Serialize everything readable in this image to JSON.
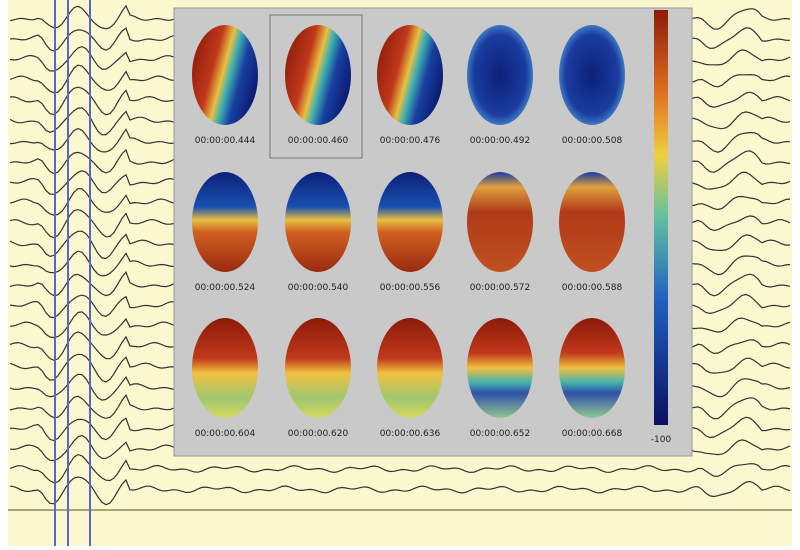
{
  "maps": [
    {
      "time": "00:00:00.444"
    },
    {
      "time": "00:00:00.460"
    },
    {
      "time": "00:00:00.476"
    },
    {
      "time": "00:00:00.492"
    },
    {
      "time": "00:00:00.508"
    },
    {
      "time": "00:00:00.524"
    },
    {
      "time": "00:00:00.540"
    },
    {
      "time": "00:00:00.556"
    },
    {
      "time": "00:00:00.572"
    },
    {
      "time": "00:00:00.588"
    },
    {
      "time": "00:00:00.604"
    },
    {
      "time": "00:00:00.620"
    },
    {
      "time": "00:00:00.636"
    },
    {
      "time": "00:00:00.652"
    },
    {
      "time": "00:00:00.668"
    }
  ],
  "colorbar": {
    "min_label": "-100"
  }
}
